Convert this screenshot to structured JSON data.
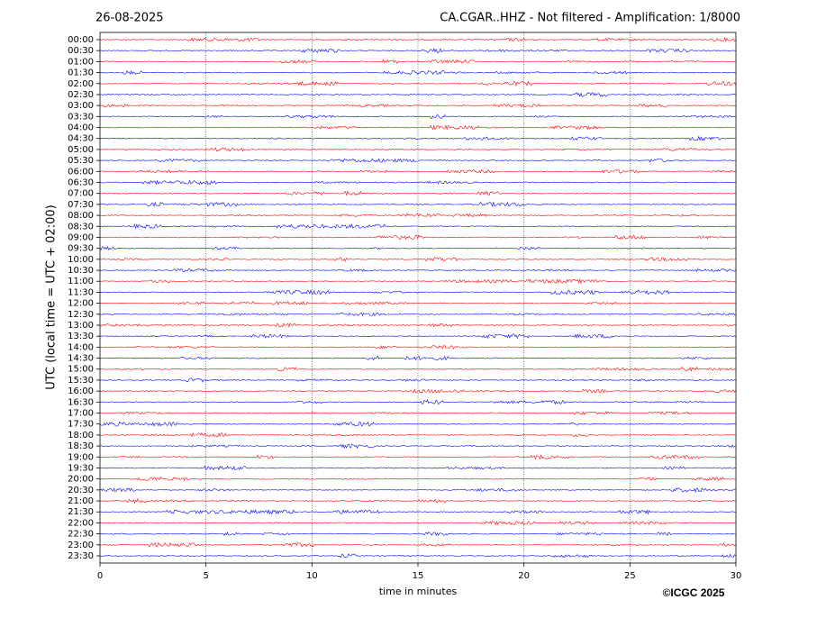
{
  "chart_data": {
    "type": "helicorder",
    "date": "26-08-2025",
    "title": "CA.CGAR..HHZ - Not filtered - Amplification: 1/8000",
    "ylabel": "UTC (local time = UTC + 02:00)",
    "xlabel": "time in minutes",
    "credit": "©ICGC 2025",
    "categories": [
      "00:00",
      "00:30",
      "01:00",
      "01:30",
      "02:00",
      "02:30",
      "03:00",
      "03:30",
      "04:00",
      "04:30",
      "05:00",
      "05:30",
      "06:00",
      "06:30",
      "07:00",
      "07:30",
      "08:00",
      "08:30",
      "09:00",
      "09:30",
      "10:00",
      "10:30",
      "11:00",
      "11:30",
      "12:00",
      "12:30",
      "13:00",
      "13:30",
      "14:00",
      "14:30",
      "15:00",
      "15:30",
      "16:00",
      "16:30",
      "17:00",
      "17:30",
      "18:00",
      "18:30",
      "19:00",
      "19:30",
      "20:00",
      "20:30",
      "21:00",
      "21:30",
      "22:00",
      "22:30",
      "23:00",
      "23:30"
    ],
    "colors": [
      "#ff0000",
      "#0000ff"
    ],
    "xlim": [
      0,
      30
    ],
    "xticks": [
      0,
      5,
      10,
      15,
      20,
      25,
      30
    ],
    "grid": true
  }
}
